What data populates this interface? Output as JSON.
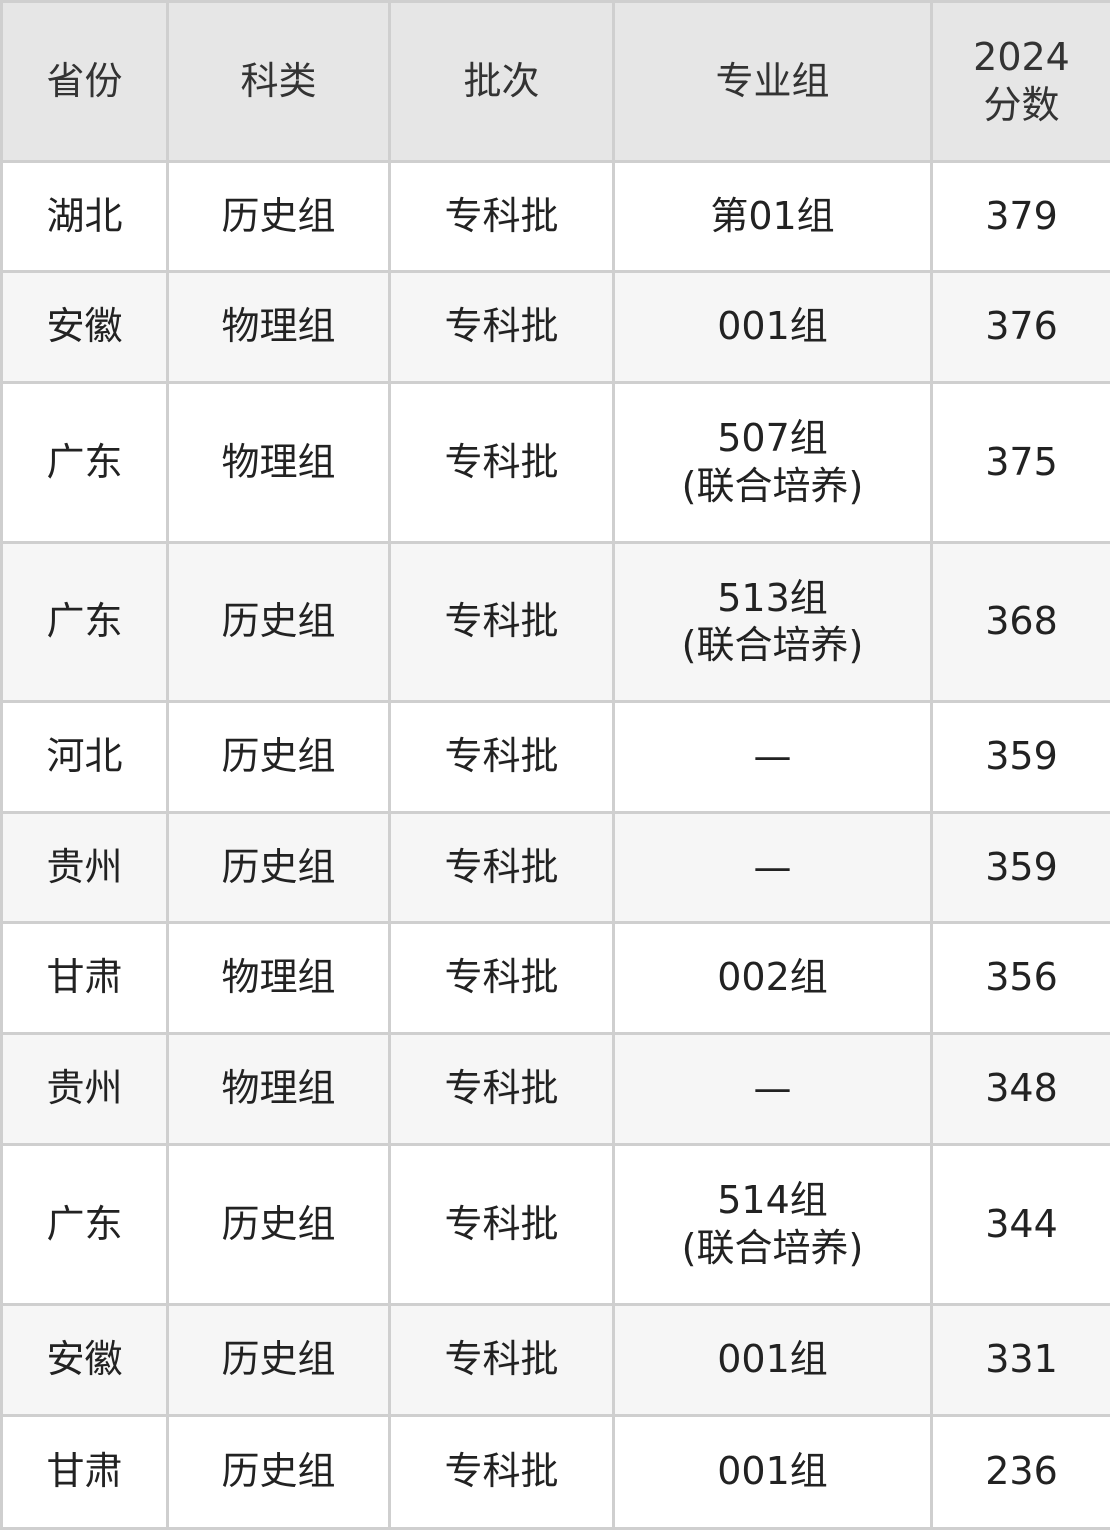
{
  "table": {
    "header": [
      "省份",
      "科类",
      "批次",
      "专业组",
      "2024\n分数"
    ],
    "rows": [
      [
        "湖北",
        "历史组",
        "专科批",
        "第01组",
        379
      ],
      [
        "安徽",
        "物理组",
        "专科批",
        "001组",
        376
      ],
      [
        "广东",
        "物理组",
        "专科批",
        "507组\n(联合培养)",
        375
      ],
      [
        "广东",
        "历史组",
        "专科批",
        "513组\n(联合培养)",
        368
      ],
      [
        "河北",
        "历史组",
        "专科批",
        "—",
        359
      ],
      [
        "贵州",
        "历史组",
        "专科批",
        "—",
        359
      ],
      [
        "甘肃",
        "物理组",
        "专科批",
        "002组",
        356
      ],
      [
        "贵州",
        "物理组",
        "专科批",
        "—",
        348
      ],
      [
        "广东",
        "历史组",
        "专科批",
        "514组\n(联合培养)",
        344
      ],
      [
        "安徽",
        "历史组",
        "专科批",
        "001组",
        331
      ],
      [
        "甘肃",
        "历史组",
        "专科批",
        "001组",
        236
      ]
    ]
  }
}
